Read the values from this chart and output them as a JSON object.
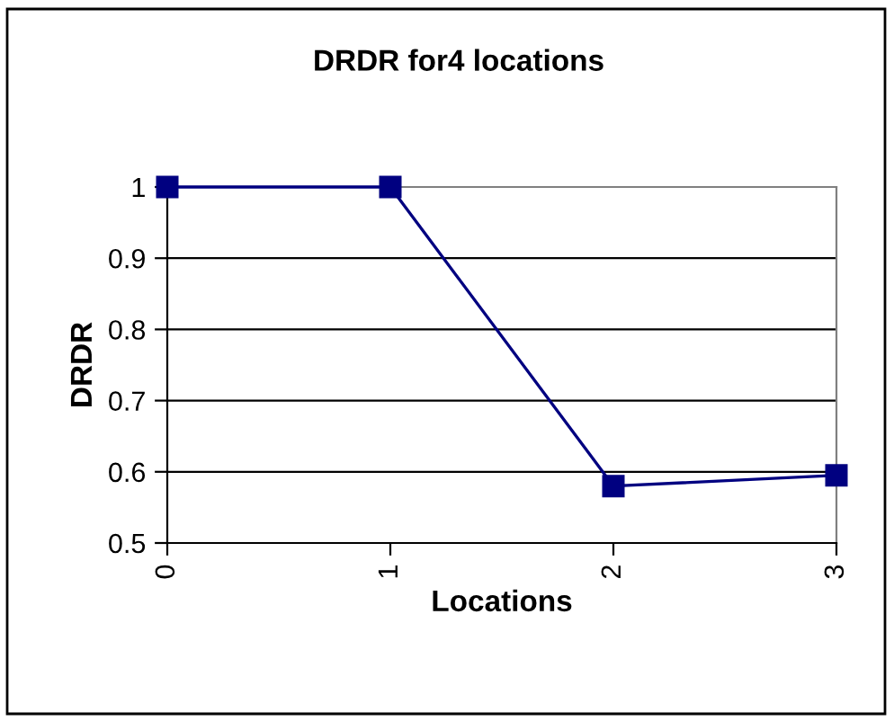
{
  "chart_data": {
    "type": "line",
    "title": "DRDR for4 locations",
    "xlabel": "Locations",
    "ylabel": "DRDR",
    "categories": [
      "0",
      "1",
      "2",
      "3"
    ],
    "series": [
      {
        "color": "#000080",
        "values": [
          1,
          1,
          0.58,
          0.595
        ]
      }
    ],
    "ylim": [
      0.5,
      1
    ],
    "yticks": [
      0.5,
      0.6,
      0.7,
      0.8,
      0.9,
      1
    ],
    "grid": "y",
    "marker": "square",
    "line_style": "solid",
    "legend": false
  }
}
